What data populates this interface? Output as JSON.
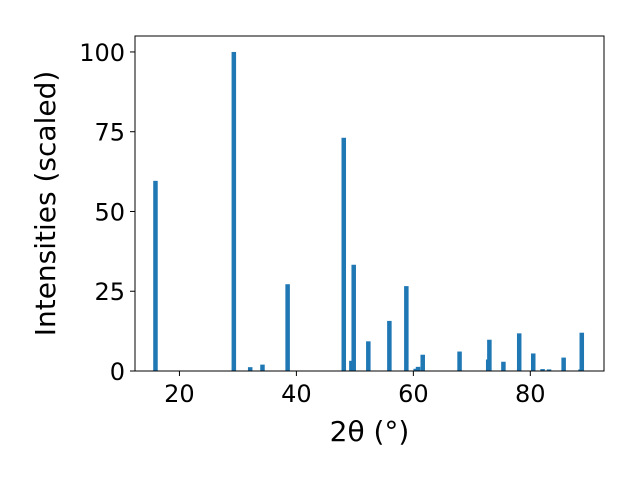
{
  "chart_data": {
    "type": "bar",
    "title": "",
    "xlabel": "2θ (°)",
    "ylabel": "Intensities (scaled)",
    "xlim": [
      12.4,
      92.6
    ],
    "ylim": [
      0,
      105
    ],
    "x_ticks": [
      20,
      40,
      60,
      80
    ],
    "y_ticks": [
      0,
      25,
      50,
      75,
      100
    ],
    "grid": false,
    "bar_color": "#1f77b4",
    "points": [
      {
        "x": 15.9,
        "y": 59.6
      },
      {
        "x": 29.3,
        "y": 100
      },
      {
        "x": 32.1,
        "y": 1.2
      },
      {
        "x": 34.2,
        "y": 2.0
      },
      {
        "x": 38.5,
        "y": 27.2
      },
      {
        "x": 48.1,
        "y": 73.1
      },
      {
        "x": 49.4,
        "y": 3.2
      },
      {
        "x": 49.8,
        "y": 33.3
      },
      {
        "x": 52.3,
        "y": 9.3
      },
      {
        "x": 55.9,
        "y": 15.7
      },
      {
        "x": 58.8,
        "y": 26.6
      },
      {
        "x": 60.4,
        "y": 0.7
      },
      {
        "x": 60.8,
        "y": 1.3
      },
      {
        "x": 61.6,
        "y": 5.1
      },
      {
        "x": 67.9,
        "y": 6.1
      },
      {
        "x": 72.8,
        "y": 3.6
      },
      {
        "x": 73.0,
        "y": 9.8
      },
      {
        "x": 75.4,
        "y": 2.9
      },
      {
        "x": 78.1,
        "y": 11.8
      },
      {
        "x": 80.5,
        "y": 5.5
      },
      {
        "x": 82.1,
        "y": 0.6
      },
      {
        "x": 83.2,
        "y": 0.5
      },
      {
        "x": 85.7,
        "y": 4.2
      },
      {
        "x": 88.6,
        "y": 0.5
      },
      {
        "x": 88.8,
        "y": 12.0
      }
    ]
  }
}
